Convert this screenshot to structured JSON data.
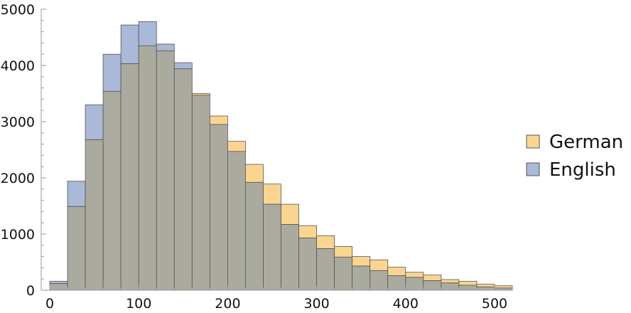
{
  "chart_data": {
    "type": "bar",
    "subtype": "overlapping-histogram",
    "title": "",
    "xlabel": "",
    "ylabel": "",
    "bin_width": 20,
    "x_bins_start": [
      0,
      20,
      40,
      60,
      80,
      100,
      120,
      140,
      160,
      180,
      200,
      220,
      240,
      260,
      280,
      300,
      320,
      340,
      360,
      380,
      400,
      420,
      440,
      460,
      480,
      500
    ],
    "series": [
      {
        "name": "German",
        "color": "#FAD58F",
        "values": [
          120,
          1490,
          2680,
          3540,
          4030,
          4350,
          4260,
          3940,
          3500,
          3100,
          2650,
          2240,
          1890,
          1530,
          1150,
          970,
          780,
          600,
          540,
          410,
          320,
          270,
          190,
          160,
          110,
          80
        ]
      },
      {
        "name": "English",
        "color": "#A9B9D7",
        "values": [
          160,
          1940,
          3300,
          4200,
          4720,
          4780,
          4380,
          4050,
          3470,
          2950,
          2470,
          1920,
          1530,
          1170,
          930,
          740,
          590,
          430,
          350,
          260,
          230,
          170,
          130,
          90,
          60,
          40
        ]
      }
    ],
    "overlap_color": "#ABAA9F",
    "xlim": [
      0,
      520
    ],
    "ylim": [
      0,
      5000
    ],
    "x_ticks": [
      0,
      100,
      200,
      300,
      400,
      500
    ],
    "y_ticks": [
      0,
      1000,
      2000,
      3000,
      4000,
      5000
    ],
    "x_tick_labels": [
      "0",
      "100",
      "200",
      "300",
      "400",
      "500"
    ],
    "y_tick_labels": [
      "0",
      "1000",
      "2000",
      "3000",
      "4000",
      "5000"
    ],
    "legend": {
      "position": "right",
      "entries": [
        "German",
        "English"
      ]
    },
    "grid": false
  }
}
